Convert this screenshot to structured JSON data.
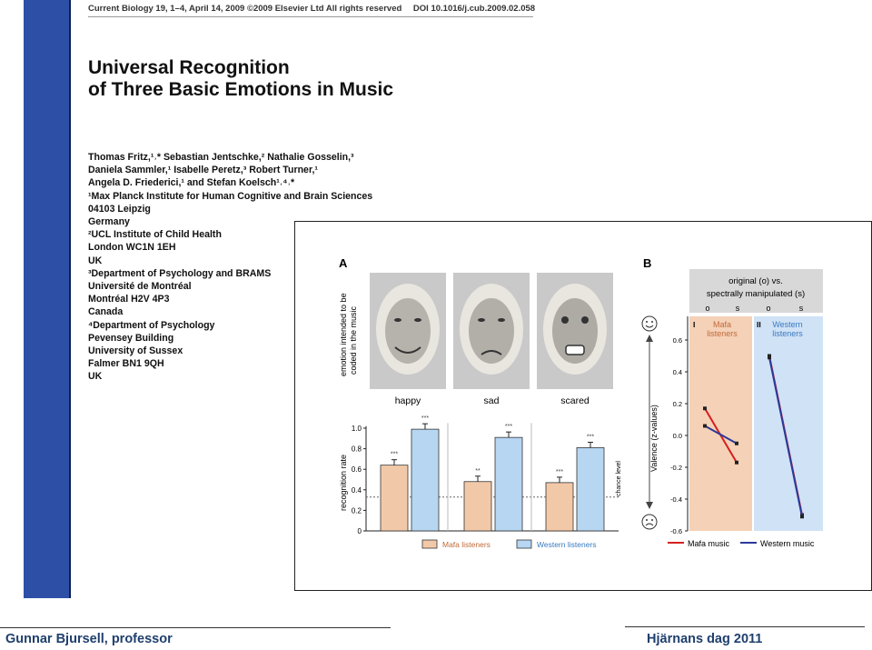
{
  "header": {
    "journal": "Current Biology 19, 1–4, April 14, 2009 ©2009 Elsevier Ltd All rights reserved",
    "doi": "DOI 10.1016/j.cub.2009.02.058"
  },
  "title": {
    "line1": "Universal Recognition",
    "line2": "of Three Basic Emotions in Music"
  },
  "authors": [
    "Thomas Fritz,¹˒* Sebastian Jentschke,² Nathalie Gosselin,³",
    "Daniela Sammler,¹ Isabelle Peretz,³ Robert Turner,¹",
    "Angela D. Friederici,¹ and Stefan Koelsch¹˒⁴˒*",
    "¹Max Planck Institute for Human Cognitive and Brain Sciences",
    "04103 Leipzig",
    "Germany",
    "²UCL Institute of Child Health",
    "London WC1N 1EH",
    "UK",
    "³Department of Psychology and BRAMS",
    "Université de Montréal",
    "Montréal H2V 4P3",
    "Canada",
    "⁴Department of Psychology",
    "Pevensey Building",
    "University of Sussex",
    "Falmer BN1 9QH",
    "UK"
  ],
  "figure": {
    "panel_a_label": "A",
    "panel_b_label": "B",
    "face_axis_label_1": "emotion intended to be",
    "face_axis_label_2": "coded in the music",
    "faces": [
      "happy",
      "sad",
      "scared"
    ],
    "chance_label": "chance level",
    "legend_mafa": "Mafa listeners",
    "legend_western": "Western listeners",
    "b_header_1": "original (o) vs.",
    "b_header_2": "spectrally manipulated (s)",
    "o_label": "o",
    "s_label": "s",
    "section_i": "I",
    "section_ii": "II",
    "mafa_1": "Mafa",
    "mafa_2": "listeners",
    "western_1": "Western",
    "western_2": "listeners",
    "legend_mafa_music": "Mafa music",
    "legend_western_music": "Western music",
    "colors": {
      "mafa_fill": "#f2c9a8",
      "western_fill": "#b6d6f2",
      "red_line": "#d42020",
      "blue_line": "#2a3a9a"
    }
  },
  "chart_data": [
    {
      "type": "bar",
      "categories": [
        "happy",
        "sad",
        "scared"
      ],
      "ylabel": "recognition rate",
      "ylim": [
        0,
        1.0
      ],
      "yticks": [
        "0",
        "0.2",
        "0.4",
        "0.6",
        "0.8",
        "1.0"
      ],
      "chance_level": 0.33,
      "series": [
        {
          "name": "Mafa listeners",
          "values": [
            0.64,
            0.48,
            0.47
          ],
          "significance": [
            "***",
            "**",
            "***"
          ]
        },
        {
          "name": "Western listeners",
          "values": [
            0.99,
            0.91,
            0.81
          ],
          "significance": [
            "***",
            "***",
            "***"
          ]
        }
      ]
    },
    {
      "type": "line",
      "ylabel": "Valence (z-values)",
      "ylim": [
        -0.6,
        0.6
      ],
      "yticks": [
        "0.6",
        "0.4",
        "0.2",
        "0.0",
        "-0.2",
        "-0.4",
        "-0.6"
      ],
      "groups": [
        "Mafa listeners",
        "Western listeners"
      ],
      "x": [
        "o",
        "s"
      ],
      "series": [
        {
          "name": "Mafa music",
          "group": "Mafa listeners",
          "values": [
            0.17,
            -0.17
          ]
        },
        {
          "name": "Western music",
          "group": "Mafa listeners",
          "values": [
            0.06,
            -0.05
          ]
        },
        {
          "name": "Mafa music",
          "group": "Western listeners",
          "values": [
            0.5,
            -0.5
          ]
        },
        {
          "name": "Western music",
          "group": "Western listeners",
          "values": [
            0.49,
            -0.51
          ]
        }
      ]
    }
  ],
  "footer": {
    "left": "Gunnar Bjursell, professor",
    "right": "Hjärnans dag 2011"
  }
}
